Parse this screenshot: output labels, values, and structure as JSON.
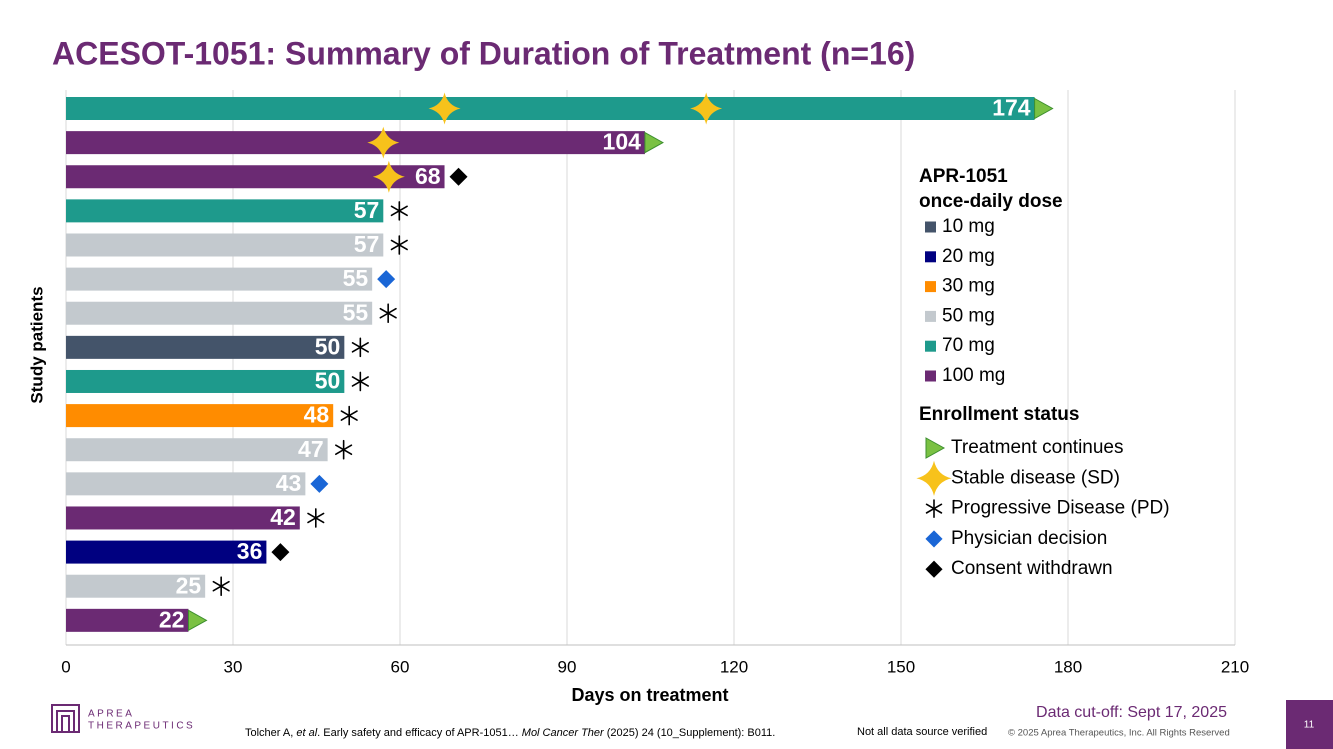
{
  "chart_data": {
    "type": "swimmer",
    "title": "ACESOT-1051: Summary of Duration of Treatment (n=16)",
    "x_label": "Days on treatment",
    "y_label": "Study patients",
    "categories": [
      null,
      null,
      null,
      null,
      null,
      null,
      null,
      null,
      null,
      null,
      null,
      null,
      null,
      null,
      null,
      null
    ],
    "series": [
      {
        "name": "10 mg",
        "color": "#44546a",
        "values": [
          null,
          null,
          null,
          null,
          null,
          null,
          null,
          50,
          null,
          null,
          null,
          null,
          null,
          null,
          null,
          null
        ]
      },
      {
        "name": "20 mg",
        "color": "#000080",
        "values": [
          null,
          null,
          null,
          null,
          null,
          null,
          null,
          null,
          null,
          null,
          null,
          null,
          null,
          36,
          null,
          null
        ]
      },
      {
        "name": "30 mg",
        "color": "#ff8c00",
        "values": [
          null,
          null,
          null,
          null,
          null,
          null,
          null,
          null,
          null,
          48,
          null,
          null,
          null,
          null,
          null,
          null
        ]
      },
      {
        "name": "50 mg",
        "color": "#c3c9ce",
        "values": [
          null,
          null,
          null,
          null,
          57,
          55,
          55,
          null,
          null,
          null,
          47,
          43,
          null,
          null,
          25,
          null
        ]
      },
      {
        "name": "70 mg",
        "color": "#1e9a8c",
        "values": [
          174,
          null,
          null,
          57,
          null,
          null,
          null,
          null,
          50,
          null,
          null,
          null,
          null,
          null,
          null,
          null
        ]
      },
      {
        "name": "100 mg",
        "color": "#6b2a73",
        "values": [
          null,
          104,
          68,
          null,
          null,
          null,
          null,
          null,
          null,
          null,
          null,
          null,
          42,
          null,
          null,
          22
        ]
      }
    ],
    "legend_title": [
      "APR-1051",
      "once-daily dose"
    ],
    "status_title": "Enrollment status",
    "statuses": [
      {
        "name": "Treatment continues",
        "marker": "triangle",
        "color": "#7ac143",
        "values": [
          174,
          104,
          null,
          null,
          null,
          null,
          null,
          null,
          null,
          null,
          null,
          null,
          null,
          null,
          null,
          22
        ]
      },
      {
        "name": "Stable disease (SD)",
        "marker": "star",
        "color": "#f7c21b",
        "values": [
          [
            68,
            115
          ],
          [
            57
          ],
          [
            58
          ],
          null,
          null,
          null,
          null,
          null,
          null,
          null,
          null,
          null,
          null,
          null,
          null,
          null
        ]
      },
      {
        "name": "Progressive Disease (PD)",
        "marker": "asterisk",
        "color": "#000000",
        "values": [
          null,
          null,
          null,
          57,
          57,
          null,
          55,
          50,
          50,
          48,
          47,
          null,
          42,
          null,
          25,
          null
        ]
      },
      {
        "name": "Physician decision",
        "marker": "diamond",
        "color": "#1a66d6",
        "values": [
          null,
          null,
          null,
          null,
          null,
          55,
          null,
          null,
          null,
          null,
          null,
          43,
          null,
          null,
          null,
          null
        ]
      },
      {
        "name": "Consent withdrawn",
        "marker": "diamond",
        "color": "#000000",
        "values": [
          null,
          null,
          68,
          null,
          null,
          null,
          null,
          null,
          null,
          null,
          null,
          null,
          null,
          36,
          null,
          null
        ]
      }
    ],
    "xlim": [
      0,
      210
    ],
    "xticks": [
      0,
      30,
      60,
      90,
      120,
      150,
      180,
      210
    ],
    "grid": true
  },
  "footer": {
    "logo": [
      "APREA",
      "THERAPEUTICS"
    ],
    "citation": [
      "Tolcher A, ",
      "et al",
      ". Early safety and efficacy of APR-1051… ",
      "Mol Cancer Ther",
      " (2025) 24 (10_Supplement): B011."
    ],
    "note": "Not all data source verified",
    "copyright": "© 2025 Aprea Therapeutics, Inc. All Rights Reserved",
    "cutoff": "Data cut-off: Sept 17, 2025",
    "page": "11"
  }
}
